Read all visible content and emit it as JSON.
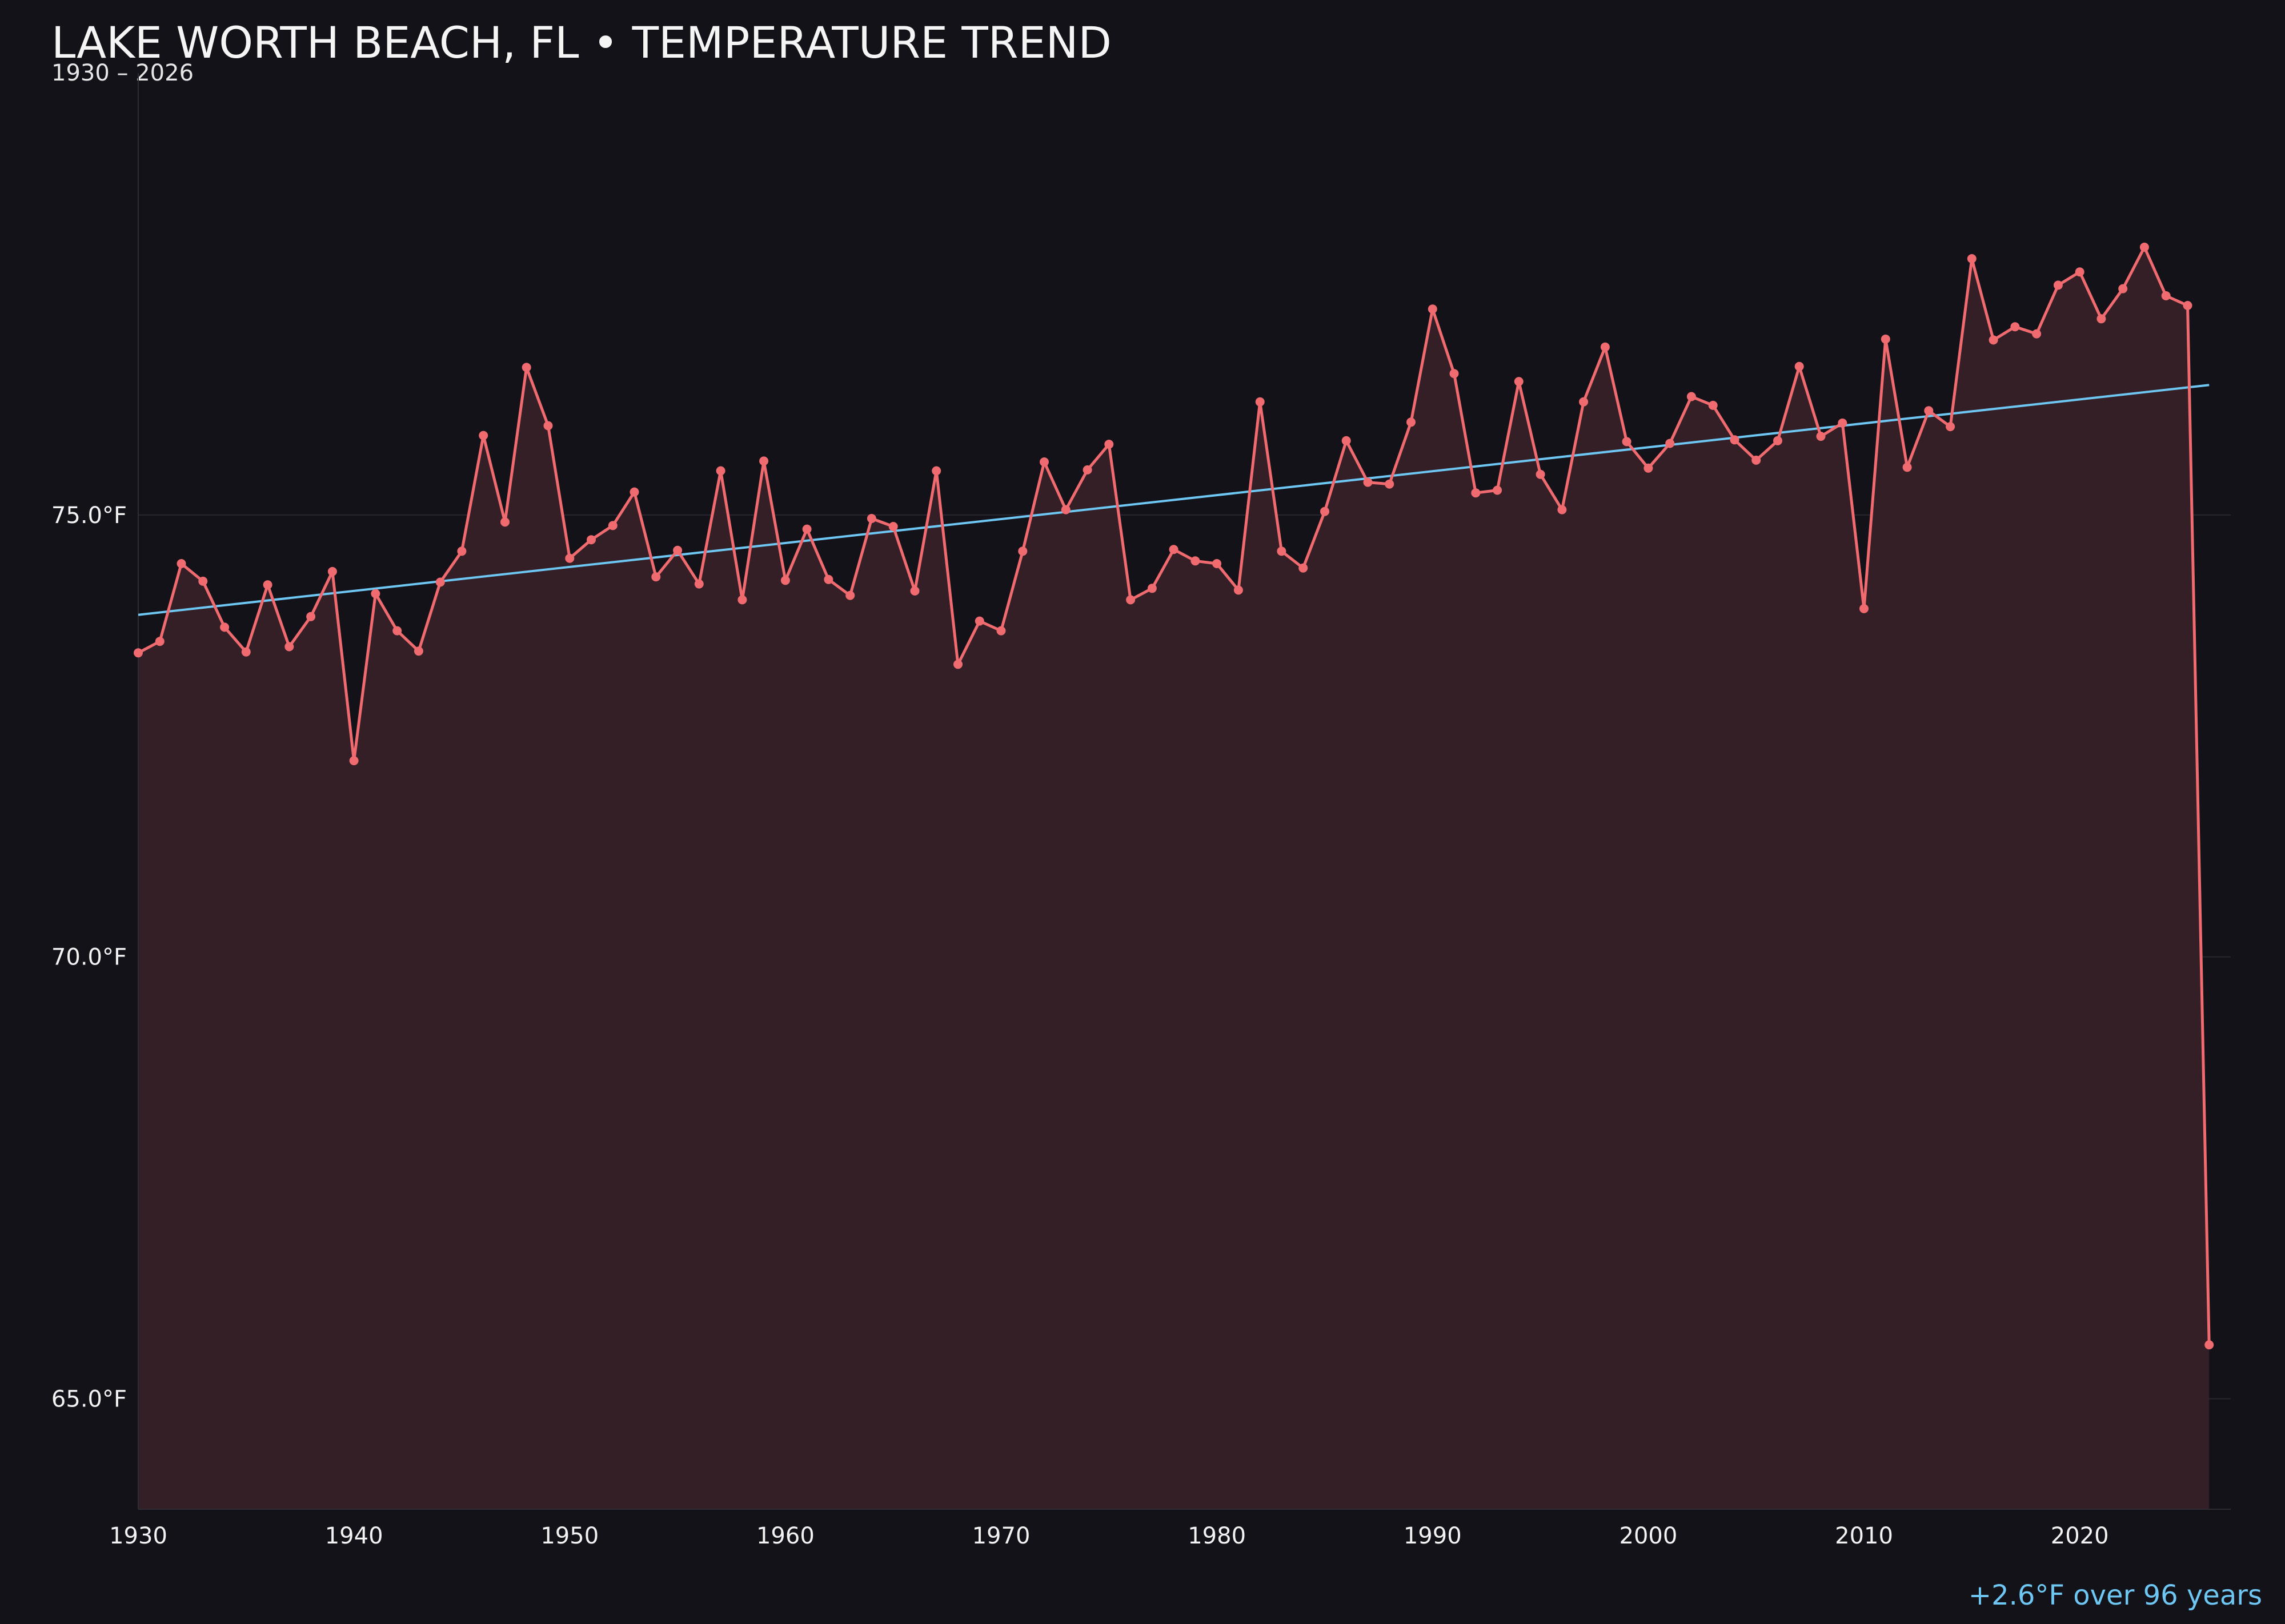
{
  "chart_data": {
    "type": "line",
    "title": "LAKE WORTH BEACH, FL • TEMPERATURE TREND",
    "subtitle": "1930 – 2026",
    "annotation": "+2.6°F over 96 years",
    "xlabel": "",
    "ylabel": "",
    "xlim": [
      1930,
      2027
    ],
    "ylim": [
      63.75,
      80.0
    ],
    "x_ticks": [
      {
        "value": 1930,
        "label": "1930"
      },
      {
        "value": 1940,
        "label": "1940"
      },
      {
        "value": 1950,
        "label": "1950"
      },
      {
        "value": 1960,
        "label": "1960"
      },
      {
        "value": 1970,
        "label": "1970"
      },
      {
        "value": 1980,
        "label": "1980"
      },
      {
        "value": 1990,
        "label": "1990"
      },
      {
        "value": 2000,
        "label": "2000"
      },
      {
        "value": 2010,
        "label": "2010"
      },
      {
        "value": 2020,
        "label": "2020"
      }
    ],
    "y_ticks": [
      {
        "value": 65.0,
        "label": "65.0°F"
      },
      {
        "value": 70.0,
        "label": "70.0°F"
      },
      {
        "value": 75.0,
        "label": "75.0°F"
      }
    ],
    "grid": "horizontal",
    "colors": {
      "background": "#131219",
      "series": "#ef6b6f",
      "fill": "#341f26",
      "trend": "#6ec6f2",
      "grid": "#2a2630",
      "text": "#f2f2f2"
    },
    "series": [
      {
        "x": [
          1930,
          1931,
          1932,
          1933,
          1934,
          1935,
          1936,
          1937,
          1938,
          1939,
          1940,
          1941,
          1942,
          1943,
          1944,
          1945,
          1946,
          1947,
          1948,
          1949,
          1950,
          1951,
          1952,
          1953,
          1954,
          1955,
          1956,
          1957,
          1958,
          1959,
          1960,
          1961,
          1962,
          1963,
          1964,
          1965,
          1966,
          1967,
          1968,
          1969,
          1970,
          1971,
          1972,
          1973,
          1974,
          1975,
          1976,
          1977,
          1978,
          1979,
          1980,
          1981,
          1982,
          1983,
          1984,
          1985,
          1986,
          1987,
          1988,
          1989,
          1990,
          1991,
          1992,
          1993,
          1994,
          1995,
          1996,
          1997,
          1998,
          1999,
          2000,
          2001,
          2002,
          2003,
          2004,
          2005,
          2006,
          2007,
          2008,
          2009,
          2010,
          2011,
          2012,
          2013,
          2014,
          2015,
          2016,
          2017,
          2018,
          2019,
          2020,
          2021,
          2022,
          2023,
          2024,
          2025,
          2026
        ],
        "values": [
          73.44,
          73.57,
          74.45,
          74.25,
          73.73,
          73.45,
          74.21,
          73.51,
          73.85,
          74.36,
          72.22,
          74.11,
          73.69,
          73.46,
          74.24,
          74.59,
          75.9,
          74.92,
          76.67,
          76.01,
          74.51,
          74.72,
          74.88,
          75.26,
          74.3,
          74.6,
          74.22,
          75.5,
          74.04,
          75.61,
          74.26,
          74.84,
          74.27,
          74.09,
          74.96,
          74.87,
          74.14,
          75.5,
          73.31,
          73.8,
          73.69,
          74.59,
          75.6,
          75.06,
          75.51,
          75.8,
          74.04,
          74.17,
          74.61,
          74.48,
          74.45,
          74.15,
          76.28,
          74.59,
          74.4,
          75.04,
          75.84,
          75.37,
          75.35,
          76.05,
          77.33,
          76.6,
          75.25,
          75.28,
          76.51,
          75.46,
          75.06,
          76.28,
          76.9,
          75.83,
          75.53,
          75.81,
          76.34,
          76.24,
          75.85,
          75.62,
          75.84,
          76.68,
          75.89,
          76.04,
          73.94,
          76.99,
          75.54,
          76.18,
          76.0,
          77.9,
          76.98,
          77.13,
          77.05,
          77.6,
          77.75,
          77.22,
          77.56,
          78.03,
          77.48,
          77.37,
          65.61
        ]
      }
    ],
    "trend": {
      "x": [
        1930,
        2026
      ],
      "values": [
        73.87,
        76.47
      ]
    }
  }
}
